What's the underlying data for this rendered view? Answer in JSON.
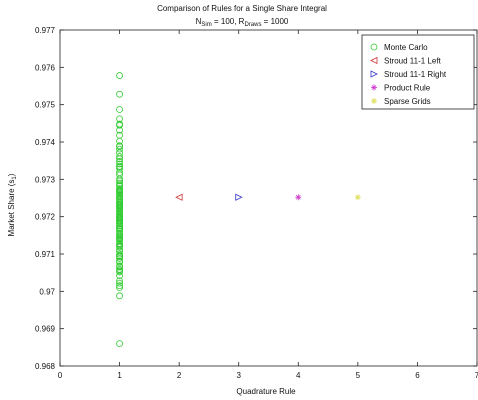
{
  "chart_data": {
    "type": "scatter",
    "title_line1": "Comparison of Rules for a Single Share Integral",
    "title_line2_text": "N_Sim = 100, R_Draws = 1000",
    "title_line2": {
      "n_main": "N",
      "n_sub": "Sim",
      "n_value": " = 100, R",
      "r_sub": "Draws",
      "r_value": " = 1000"
    },
    "xlabel": "Quadrature Rule",
    "ylabel_main": "Market Share (s",
    "ylabel_sub": "1",
    "ylabel_end": ")",
    "ylabel_text": "Market Share (s_1)",
    "xlim": [
      0,
      7
    ],
    "ylim": [
      0.968,
      0.977
    ],
    "xticks": [
      "0",
      "1",
      "2",
      "3",
      "4",
      "5",
      "6",
      "7"
    ],
    "yticks": [
      "0.968",
      "0.969",
      "0.97",
      "0.971",
      "0.972",
      "0.973",
      "0.974",
      "0.975",
      "0.976",
      "0.977"
    ],
    "legend_position": "top-right",
    "series": [
      {
        "name": "Monte Carlo",
        "marker": "circle",
        "color": "#33cc33",
        "x": 1,
        "values": [
          0.97578,
          0.97528,
          0.97487,
          0.97462,
          0.97445,
          0.97432,
          0.97418,
          0.97402,
          0.97388,
          0.97371,
          0.97355,
          0.97341,
          0.97328,
          0.97312,
          0.97296,
          0.97282,
          0.97268,
          0.97254,
          0.97241,
          0.97228,
          0.97214,
          0.97201,
          0.97188,
          0.97175,
          0.97161,
          0.97148,
          0.97135,
          0.97121,
          0.97108,
          0.97095,
          0.97081,
          0.97068,
          0.97055,
          0.97042,
          0.97028,
          0.97015,
          0.97238,
          0.97262,
          0.97301,
          0.97335,
          0.97361,
          0.97381,
          0.97195,
          0.97171,
          0.97145,
          0.97118,
          0.97092,
          0.97065,
          0.97225,
          0.9725,
          0.97275,
          0.9729,
          0.97318,
          0.97348,
          0.97208,
          0.97182,
          0.97155,
          0.97128,
          0.971,
          0.97078,
          0.97052,
          0.9701,
          0.97022,
          0.97095,
          0.97125,
          0.9718,
          0.97235,
          0.97265,
          0.9739,
          0.97448,
          0.97168,
          0.97212,
          0.97285,
          0.97332,
          0.97142,
          0.97198,
          0.97088,
          0.97059,
          0.97248,
          0.97272,
          0.97165,
          0.97112,
          0.97245,
          0.97232,
          0.97218,
          0.9719,
          0.97138,
          0.97175,
          0.97258,
          0.97205,
          0.97152,
          0.97192,
          0.97222,
          0.9727,
          0.9723,
          0.97184,
          0.9725,
          0.972,
          0.96988,
          0.9686
        ]
      },
      {
        "name": "Stroud 11-1 Left",
        "marker": "triangle-left",
        "color": "#cc3333",
        "x": 2,
        "values": [
          0.97252
        ]
      },
      {
        "name": "Stroud 11-1 Right",
        "marker": "triangle-right",
        "color": "#3333cc",
        "x": 3,
        "values": [
          0.97252
        ]
      },
      {
        "name": "Product Rule",
        "marker": "star",
        "color": "#cc33cc",
        "x": 4,
        "values": [
          0.97252
        ]
      },
      {
        "name": "Sparse Grids",
        "marker": "star",
        "color": "#dddd55",
        "x": 5,
        "values": [
          0.97252
        ]
      }
    ]
  }
}
